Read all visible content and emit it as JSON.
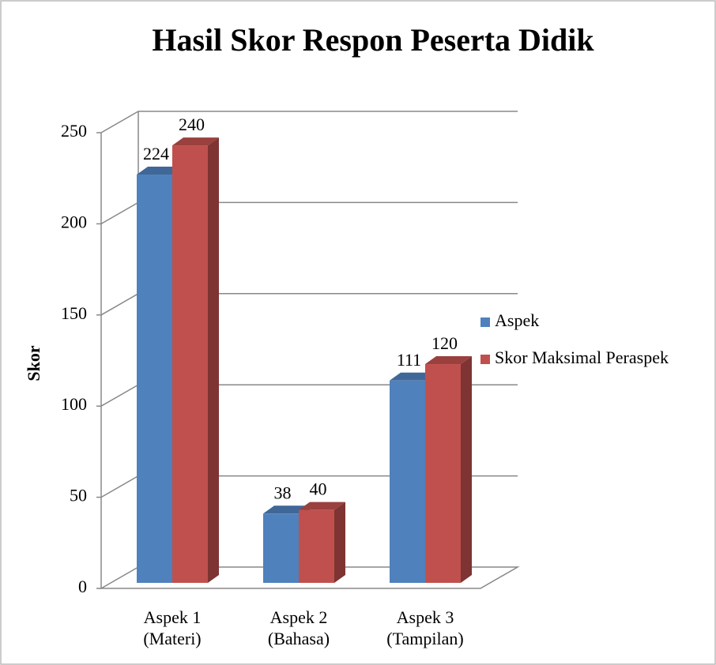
{
  "chart_data": {
    "type": "bar",
    "title": "Hasil Skor Respon Peserta Didik",
    "y_label": "Skor",
    "categories": [
      "Aspek 1\n(Materi)",
      "Aspek 2\n(Bahasa)",
      "Aspek 3\n(Tampilan)"
    ],
    "series": [
      {
        "name": "Aspek",
        "color": "#4f81bd",
        "values": [
          224,
          38,
          111
        ]
      },
      {
        "name": "Skor Maksimal Peraspek",
        "color": "#c0504d",
        "values": [
          240,
          40,
          120
        ]
      }
    ],
    "ylim": [
      0,
      250
    ],
    "yticks": [
      0,
      50,
      100,
      150,
      200,
      250
    ],
    "grid": true,
    "legend": "right"
  }
}
